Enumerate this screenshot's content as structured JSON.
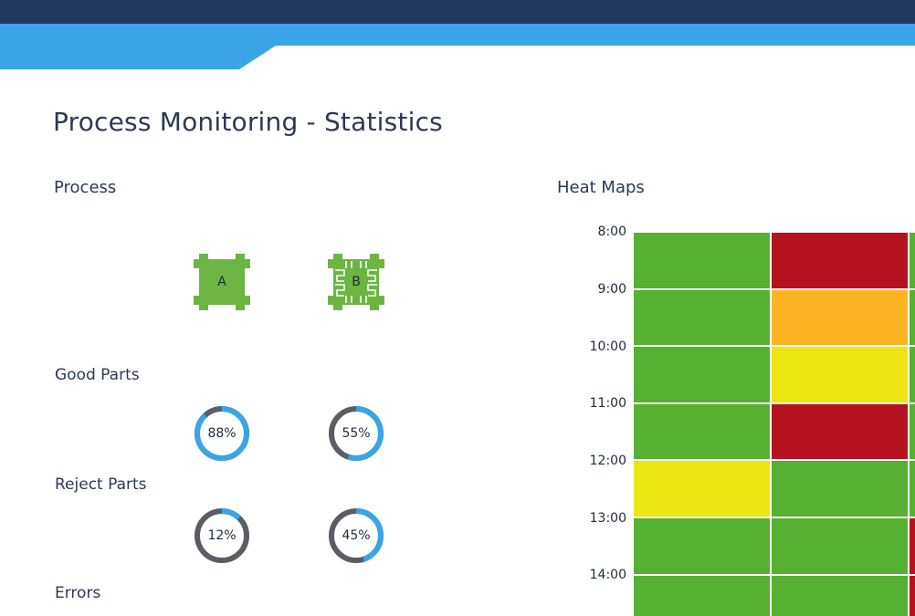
{
  "page": {
    "title": "Process Monitoring - Statistics",
    "colors": {
      "header_dark": "#23395f",
      "header_blue": "#3aa5e6",
      "machine_green": "#6cb543",
      "donut_blue": "#3aa5e6",
      "donut_gray": "#5a5e64"
    }
  },
  "process": {
    "label": "Process",
    "machines": [
      {
        "label": "A",
        "icon": "machine-a-icon"
      },
      {
        "label": "B",
        "icon": "machine-b-icon"
      }
    ]
  },
  "good_parts": {
    "label": "Good Parts",
    "gauges": [
      {
        "text": "88%",
        "value": 88
      },
      {
        "text": "55%",
        "value": 55
      }
    ]
  },
  "reject_parts": {
    "label": "Reject Parts",
    "gauges": [
      {
        "text": "12%",
        "value": 12
      },
      {
        "text": "45%",
        "value": 45
      }
    ]
  },
  "errors": {
    "label": "Errors"
  },
  "heat_maps": {
    "label": "Heat Maps",
    "times": [
      "8:00",
      "9:00",
      "10:00",
      "11:00",
      "12:00",
      "13:00",
      "14:00"
    ],
    "colors": {
      "green": "#56b031",
      "red": "#b5121f",
      "orange": "#fbb424",
      "yellow": "#ede511"
    },
    "columns": [
      [
        "green",
        "green",
        "green",
        "green",
        "yellow",
        "green",
        "green"
      ],
      [
        "red",
        "orange",
        "yellow",
        "red",
        "green",
        "green",
        "green"
      ],
      [
        "green",
        "green",
        "green",
        "green",
        "green",
        "red",
        "red"
      ]
    ]
  }
}
